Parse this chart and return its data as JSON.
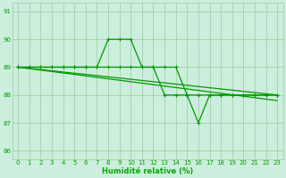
{
  "xlabel": "Humidité relative (%)",
  "xlabel_color": "#00aa00",
  "bg_color": "#cceedd",
  "grid_color": "#99cc99",
  "line_color": "#009900",
  "tick_label_color": "#009900",
  "xlim": [
    -0.5,
    23.5
  ],
  "ylim": [
    85.7,
    91.3
  ],
  "yticks": [
    86,
    87,
    88,
    89,
    90,
    91
  ],
  "xticks": [
    0,
    1,
    2,
    3,
    4,
    5,
    6,
    7,
    8,
    9,
    10,
    11,
    12,
    13,
    14,
    15,
    16,
    17,
    18,
    19,
    20,
    21,
    22,
    23
  ],
  "series": {
    "spike": [
      89,
      89,
      89,
      89,
      89,
      89,
      89,
      89,
      90,
      90,
      90,
      89,
      89,
      89,
      89,
      88,
      88,
      88,
      88,
      88,
      88,
      88,
      88,
      88
    ],
    "dip": [
      89,
      89,
      89,
      89,
      89,
      89,
      89,
      89,
      89,
      89,
      89,
      89,
      89,
      88,
      88,
      88,
      87,
      88,
      88,
      88,
      88,
      88,
      88,
      88
    ],
    "trend1_x": [
      0,
      23
    ],
    "trend1_y": [
      89.0,
      88.0
    ],
    "trend2_x": [
      0,
      23
    ],
    "trend2_y": [
      89.0,
      87.8
    ]
  }
}
